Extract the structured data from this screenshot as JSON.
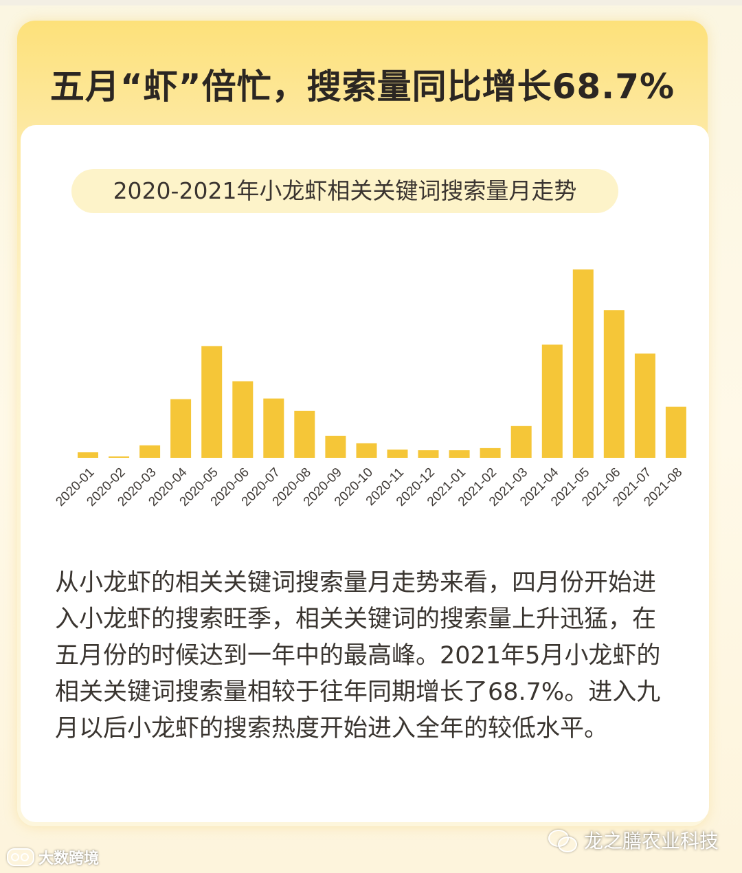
{
  "headline": "五月“虾”倍忙，搜索量同比增长68.7%",
  "chart_data": {
    "type": "bar",
    "title": "2020-2021年小龙虾相关关键词搜索量月走势",
    "color": "#f5c638",
    "categories": [
      "2020-01",
      "2020-02",
      "2020-03",
      "2020-04",
      "2020-05",
      "2020-06",
      "2020-07",
      "2020-08",
      "2020-09",
      "2020-10",
      "2020-11",
      "2020-12",
      "2021-01",
      "2021-02",
      "2021-03",
      "2021-04",
      "2021-05",
      "2021-06",
      "2021-07",
      "2021-08"
    ],
    "values": [
      8,
      2,
      18,
      85,
      162,
      111,
      86,
      68,
      32,
      21,
      12,
      11,
      11,
      14,
      46,
      164,
      273,
      214,
      151,
      74
    ],
    "ylim": [
      0,
      273
    ],
    "y_axis_visible": false,
    "grid": false,
    "xlabel": "",
    "ylabel": ""
  },
  "paragraph": "从小龙虾的相关关键词搜索量月走势来看，四月份开始进入小龙虾的搜索旺季，相关关键词的搜索量上升迅猛，在五月份的时候达到一年中的最高峰。2021年5月小龙虾的相关关键词搜索量相较于往年同期增长了68.7%。进入九月以后小龙虾的搜索热度开始进入全年的较低水平。",
  "watermark": {
    "left_text": "大数跨境",
    "right_text": "龙之膳农业科技",
    "left_icon": "logo-icon",
    "right_icon": "wechat-icon"
  }
}
